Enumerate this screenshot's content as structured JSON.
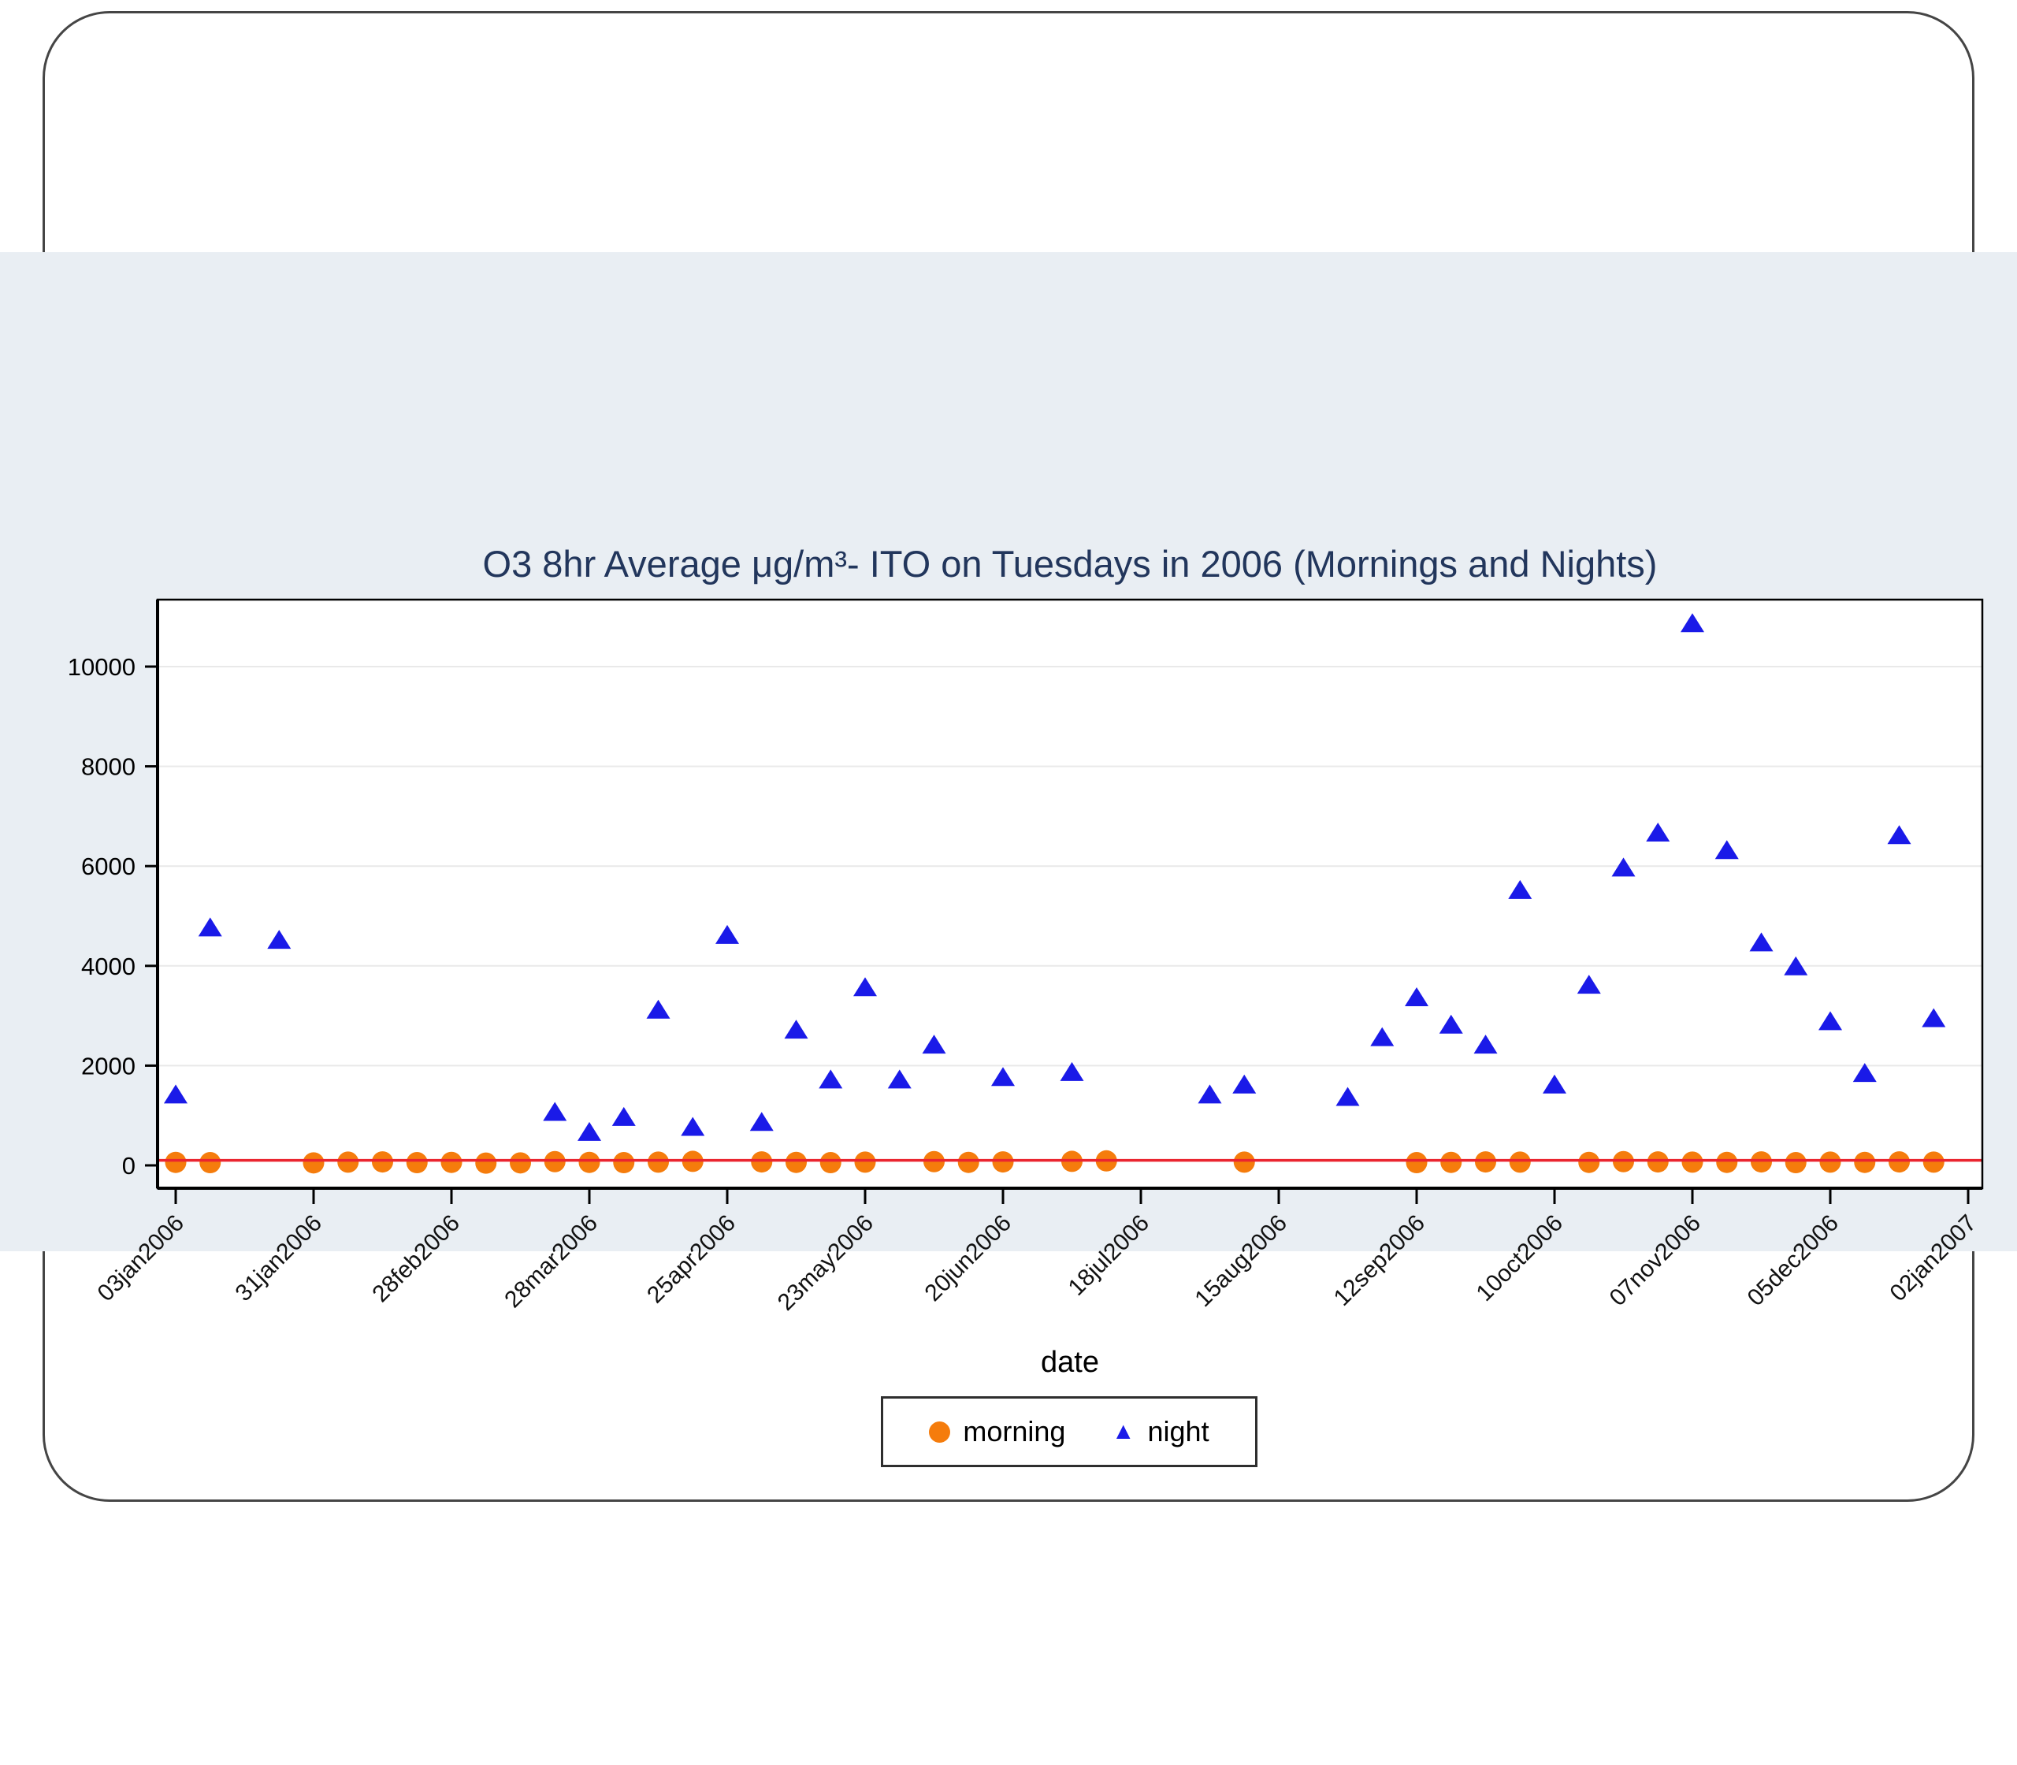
{
  "page": {
    "background": "#ffffff",
    "band_background": "#e9eef3",
    "frame_border_color": "#454545"
  },
  "chart_data": {
    "type": "scatter",
    "title": "O3 8hr Average μg/m³- ITO on Tuesdays in 2006 (Mornings and Nights)",
    "xlabel": "date",
    "ylabel": "",
    "grid": "horizontal-only",
    "plot_background": "#ffffff",
    "gridline_color": "#e9e9e9",
    "axis_color": "#000000",
    "title_color": "#22365c",
    "ylim": [
      0,
      11340
    ],
    "y_ticks": [
      0,
      2000,
      4000,
      6000,
      8000,
      10000
    ],
    "x_tick_weeks": [
      0,
      4,
      8,
      12,
      16,
      20,
      24,
      28,
      32,
      36,
      40,
      44,
      48,
      52
    ],
    "x_tick_labels": [
      "03jan2006",
      "31jan2006",
      "28feb2006",
      "28mar2006",
      "25apr2006",
      "23may2006",
      "20jun2006",
      "18jul2006",
      "15aug2006",
      "12sep2006",
      "10oct2006",
      "07nov2006",
      "05dec2006",
      "02jan2007"
    ],
    "x_week_range": [
      0,
      52
    ],
    "reference_line": {
      "value": 100,
      "color": "#ea2530"
    },
    "legend": {
      "position": "bottom-center",
      "items": [
        {
          "label": "morning",
          "marker": "circle",
          "color": "#f57c0c"
        },
        {
          "label": "night",
          "marker": "triangle",
          "color": "#1a1ae8"
        }
      ]
    },
    "series": [
      {
        "name": "morning",
        "marker": "circle",
        "color": "#f57c0c",
        "points": [
          {
            "date": "03jan2006",
            "week": 0,
            "value": 60
          },
          {
            "date": "10jan2006",
            "week": 1,
            "value": 55
          },
          {
            "date": "31jan2006",
            "week": 4,
            "value": 50
          },
          {
            "date": "07feb2006",
            "week": 5,
            "value": 65
          },
          {
            "date": "14feb2006",
            "week": 6,
            "value": 70
          },
          {
            "date": "21feb2006",
            "week": 7,
            "value": 55
          },
          {
            "date": "28feb2006",
            "week": 8,
            "value": 60
          },
          {
            "date": "07mar2006",
            "week": 9,
            "value": 45
          },
          {
            "date": "14mar2006",
            "week": 10,
            "value": 50
          },
          {
            "date": "21mar2006",
            "week": 11,
            "value": 75
          },
          {
            "date": "28mar2006",
            "week": 12,
            "value": 60
          },
          {
            "date": "04apr2006",
            "week": 13,
            "value": 55
          },
          {
            "date": "11apr2006",
            "week": 14,
            "value": 65
          },
          {
            "date": "18apr2006",
            "week": 15,
            "value": 80
          },
          {
            "date": "02may2006",
            "week": 17,
            "value": 70
          },
          {
            "date": "09may2006",
            "week": 18,
            "value": 60
          },
          {
            "date": "16may2006",
            "week": 19,
            "value": 55
          },
          {
            "date": "23may2006",
            "week": 20,
            "value": 65
          },
          {
            "date": "06jun2006",
            "week": 22,
            "value": 75
          },
          {
            "date": "13jun2006",
            "week": 23,
            "value": 60
          },
          {
            "date": "20jun2006",
            "week": 24,
            "value": 70
          },
          {
            "date": "04jul2006",
            "week": 26,
            "value": 80
          },
          {
            "date": "11jul2006",
            "week": 27,
            "value": 90
          },
          {
            "date": "08aug2006",
            "week": 31,
            "value": 65
          },
          {
            "date": "12sep2006",
            "week": 36,
            "value": 55
          },
          {
            "date": "19sep2006",
            "week": 37,
            "value": 60
          },
          {
            "date": "26sep2006",
            "week": 38,
            "value": 70
          },
          {
            "date": "03oct2006",
            "week": 39,
            "value": 65
          },
          {
            "date": "17oct2006",
            "week": 41,
            "value": 60
          },
          {
            "date": "24oct2006",
            "week": 42,
            "value": 75
          },
          {
            "date": "31oct2006",
            "week": 43,
            "value": 70
          },
          {
            "date": "07nov2006",
            "week": 44,
            "value": 65
          },
          {
            "date": "14nov2006",
            "week": 45,
            "value": 60
          },
          {
            "date": "21nov2006",
            "week": 46,
            "value": 70
          },
          {
            "date": "28nov2006",
            "week": 47,
            "value": 55
          },
          {
            "date": "05dec2006",
            "week": 48,
            "value": 65
          },
          {
            "date": "12dec2006",
            "week": 49,
            "value": 60
          },
          {
            "date": "19dec2006",
            "week": 50,
            "value": 70
          },
          {
            "date": "26dec2006",
            "week": 51,
            "value": 65
          }
        ]
      },
      {
        "name": "night",
        "marker": "triangle",
        "color": "#1a1ae8",
        "points": [
          {
            "date": "03jan2006",
            "week": 0,
            "value": 1400
          },
          {
            "date": "10jan2006",
            "week": 1,
            "value": 4750
          },
          {
            "date": "24jan2006",
            "week": 3,
            "value": 4500
          },
          {
            "date": "21mar2006",
            "week": 11,
            "value": 1050
          },
          {
            "date": "28mar2006",
            "week": 12,
            "value": 650
          },
          {
            "date": "04apr2006",
            "week": 13,
            "value": 950
          },
          {
            "date": "11apr2006",
            "week": 14,
            "value": 3100
          },
          {
            "date": "18apr2006",
            "week": 15,
            "value": 750
          },
          {
            "date": "25apr2006",
            "week": 16,
            "value": 4600
          },
          {
            "date": "02may2006",
            "week": 17,
            "value": 850
          },
          {
            "date": "09may2006",
            "week": 18,
            "value": 2700
          },
          {
            "date": "16may2006",
            "week": 19,
            "value": 1700
          },
          {
            "date": "23may2006",
            "week": 20,
            "value": 3550
          },
          {
            "date": "30may2006",
            "week": 21,
            "value": 1700
          },
          {
            "date": "06jun2006",
            "week": 22,
            "value": 2400
          },
          {
            "date": "20jun2006",
            "week": 24,
            "value": 1750
          },
          {
            "date": "04jul2006",
            "week": 26,
            "value": 1850
          },
          {
            "date": "01aug2006",
            "week": 30,
            "value": 1400
          },
          {
            "date": "08aug2006",
            "week": 31,
            "value": 1600
          },
          {
            "date": "29aug2006",
            "week": 34,
            "value": 1350
          },
          {
            "date": "05sep2006",
            "week": 35,
            "value": 2550
          },
          {
            "date": "12sep2006",
            "week": 36,
            "value": 3350
          },
          {
            "date": "19sep2006",
            "week": 37,
            "value": 2800
          },
          {
            "date": "26sep2006",
            "week": 38,
            "value": 2400
          },
          {
            "date": "03oct2006",
            "week": 39,
            "value": 5500
          },
          {
            "date": "10oct2006",
            "week": 40,
            "value": 1600
          },
          {
            "date": "17oct2006",
            "week": 41,
            "value": 3600
          },
          {
            "date": "24oct2006",
            "week": 42,
            "value": 5950
          },
          {
            "date": "31oct2006",
            "week": 43,
            "value": 6650
          },
          {
            "date": "07nov2006",
            "week": 44,
            "value": 10850
          },
          {
            "date": "14nov2006",
            "week": 45,
            "value": 6300
          },
          {
            "date": "21nov2006",
            "week": 46,
            "value": 4450
          },
          {
            "date": "28nov2006",
            "week": 47,
            "value": 3970
          },
          {
            "date": "05dec2006",
            "week": 48,
            "value": 2870
          },
          {
            "date": "12dec2006",
            "week": 49,
            "value": 1830
          },
          {
            "date": "19dec2006",
            "week": 50,
            "value": 6600
          },
          {
            "date": "26dec2006",
            "week": 51,
            "value": 2930
          }
        ]
      }
    ]
  }
}
